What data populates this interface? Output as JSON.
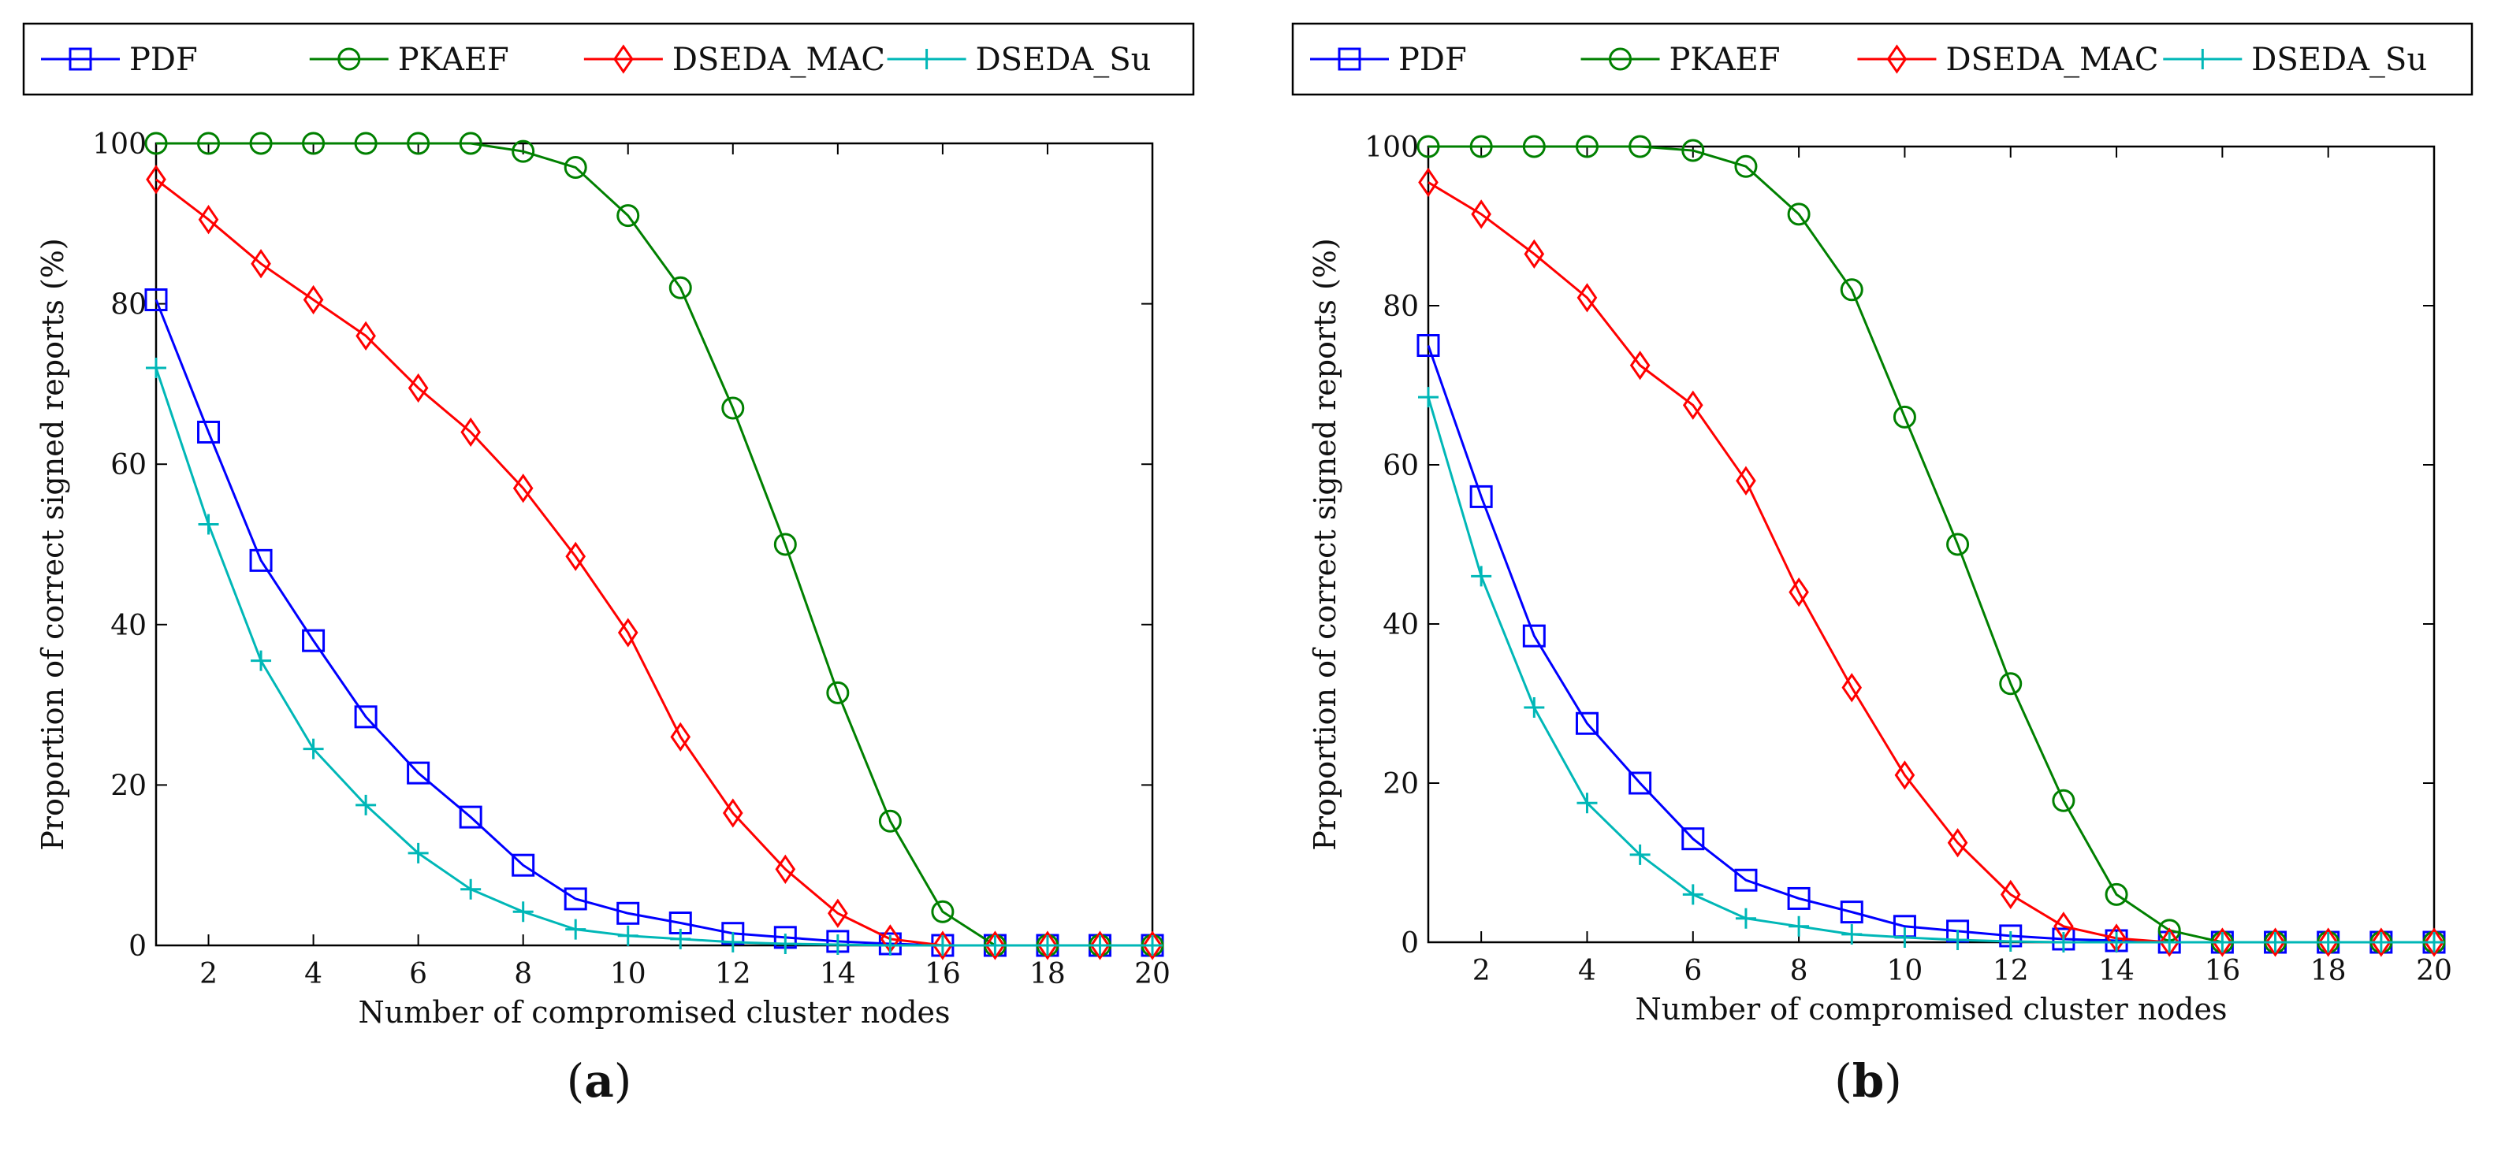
{
  "chart_data": [
    {
      "type": "line",
      "panel_label": {
        "open": "(",
        "letter": "a",
        "close": ")"
      },
      "xlabel": "Number of compromised cluster nodes",
      "ylabel": "Proportion of correct signed reports (%)",
      "xlim": [
        1,
        20
      ],
      "ylim": [
        0,
        100
      ],
      "xticks": [
        2,
        4,
        6,
        8,
        10,
        12,
        14,
        16,
        18,
        20
      ],
      "yticks": [
        0,
        20,
        40,
        60,
        80,
        100
      ],
      "grid": false,
      "legend_position": "top",
      "x": [
        1,
        2,
        3,
        4,
        5,
        6,
        7,
        8,
        9,
        10,
        11,
        12,
        13,
        14,
        15,
        16,
        17,
        18,
        19,
        20
      ],
      "series": [
        {
          "name": "PDF",
          "color": "#0000ff",
          "marker": "square",
          "values": [
            80.5,
            64,
            48,
            38,
            28.5,
            21.5,
            16,
            10,
            5.8,
            4,
            2.8,
            1.5,
            1,
            0.5,
            0.2,
            0,
            0,
            0,
            0,
            0
          ]
        },
        {
          "name": "PKAEF",
          "color": "#008000",
          "marker": "circle",
          "values": [
            100,
            100,
            100,
            100,
            100,
            100,
            100,
            99,
            97,
            91,
            82,
            67,
            50,
            31.5,
            15.5,
            4.2,
            0,
            0,
            0,
            0
          ]
        },
        {
          "name": "DSEDA_MAC",
          "color": "#ff0000",
          "marker": "diamond",
          "values": [
            95.5,
            90.5,
            85,
            80.5,
            76,
            69.5,
            64,
            57,
            48.5,
            39,
            26,
            16.5,
            9.5,
            4,
            0.8,
            0,
            0,
            0,
            0,
            0
          ]
        },
        {
          "name": "DSEDA_Su",
          "color": "#00b7b7",
          "marker": "plus",
          "values": [
            72,
            52.5,
            35.5,
            24.5,
            17.5,
            11.5,
            7,
            4.2,
            2,
            1.2,
            0.8,
            0.4,
            0.2,
            0.1,
            0,
            0,
            0,
            0,
            0,
            0
          ]
        }
      ]
    },
    {
      "type": "line",
      "panel_label": {
        "open": "(",
        "letter": "b",
        "close": ")"
      },
      "xlabel": "Number of compromised cluster nodes",
      "ylabel": "Proportion of correct signed reports (%)",
      "xlim": [
        1,
        20
      ],
      "ylim": [
        0,
        100
      ],
      "xticks": [
        2,
        4,
        6,
        8,
        10,
        12,
        14,
        16,
        18,
        20
      ],
      "yticks": [
        0,
        20,
        40,
        60,
        80,
        100
      ],
      "grid": false,
      "legend_position": "top",
      "x": [
        1,
        2,
        3,
        4,
        5,
        6,
        7,
        8,
        9,
        10,
        11,
        12,
        13,
        14,
        15,
        16,
        17,
        18,
        19,
        20
      ],
      "series": [
        {
          "name": "PDF",
          "color": "#0000ff",
          "marker": "square",
          "values": [
            75,
            56,
            38.5,
            27.5,
            20,
            13,
            7.8,
            5.5,
            3.8,
            2,
            1.4,
            0.8,
            0.4,
            0.2,
            0,
            0,
            0,
            0,
            0,
            0
          ]
        },
        {
          "name": "PKAEF",
          "color": "#008000",
          "marker": "circle",
          "values": [
            100,
            100,
            100,
            100,
            100,
            99.5,
            97.5,
            91.5,
            82,
            66,
            50,
            32.5,
            17.8,
            6,
            1.5,
            0,
            0,
            0,
            0,
            0
          ]
        },
        {
          "name": "DSEDA_MAC",
          "color": "#ff0000",
          "marker": "diamond",
          "values": [
            95.5,
            91.5,
            86.5,
            81,
            72.5,
            67.5,
            58,
            44,
            32,
            21,
            12.5,
            6,
            2,
            0.5,
            0,
            0,
            0,
            0,
            0,
            0
          ]
        },
        {
          "name": "DSEDA_Su",
          "color": "#00b7b7",
          "marker": "plus",
          "values": [
            68.5,
            46,
            29.5,
            17.5,
            11,
            6,
            3,
            2,
            1,
            0.6,
            0.3,
            0.1,
            0,
            0,
            0,
            0,
            0,
            0,
            0,
            0
          ]
        }
      ]
    }
  ]
}
